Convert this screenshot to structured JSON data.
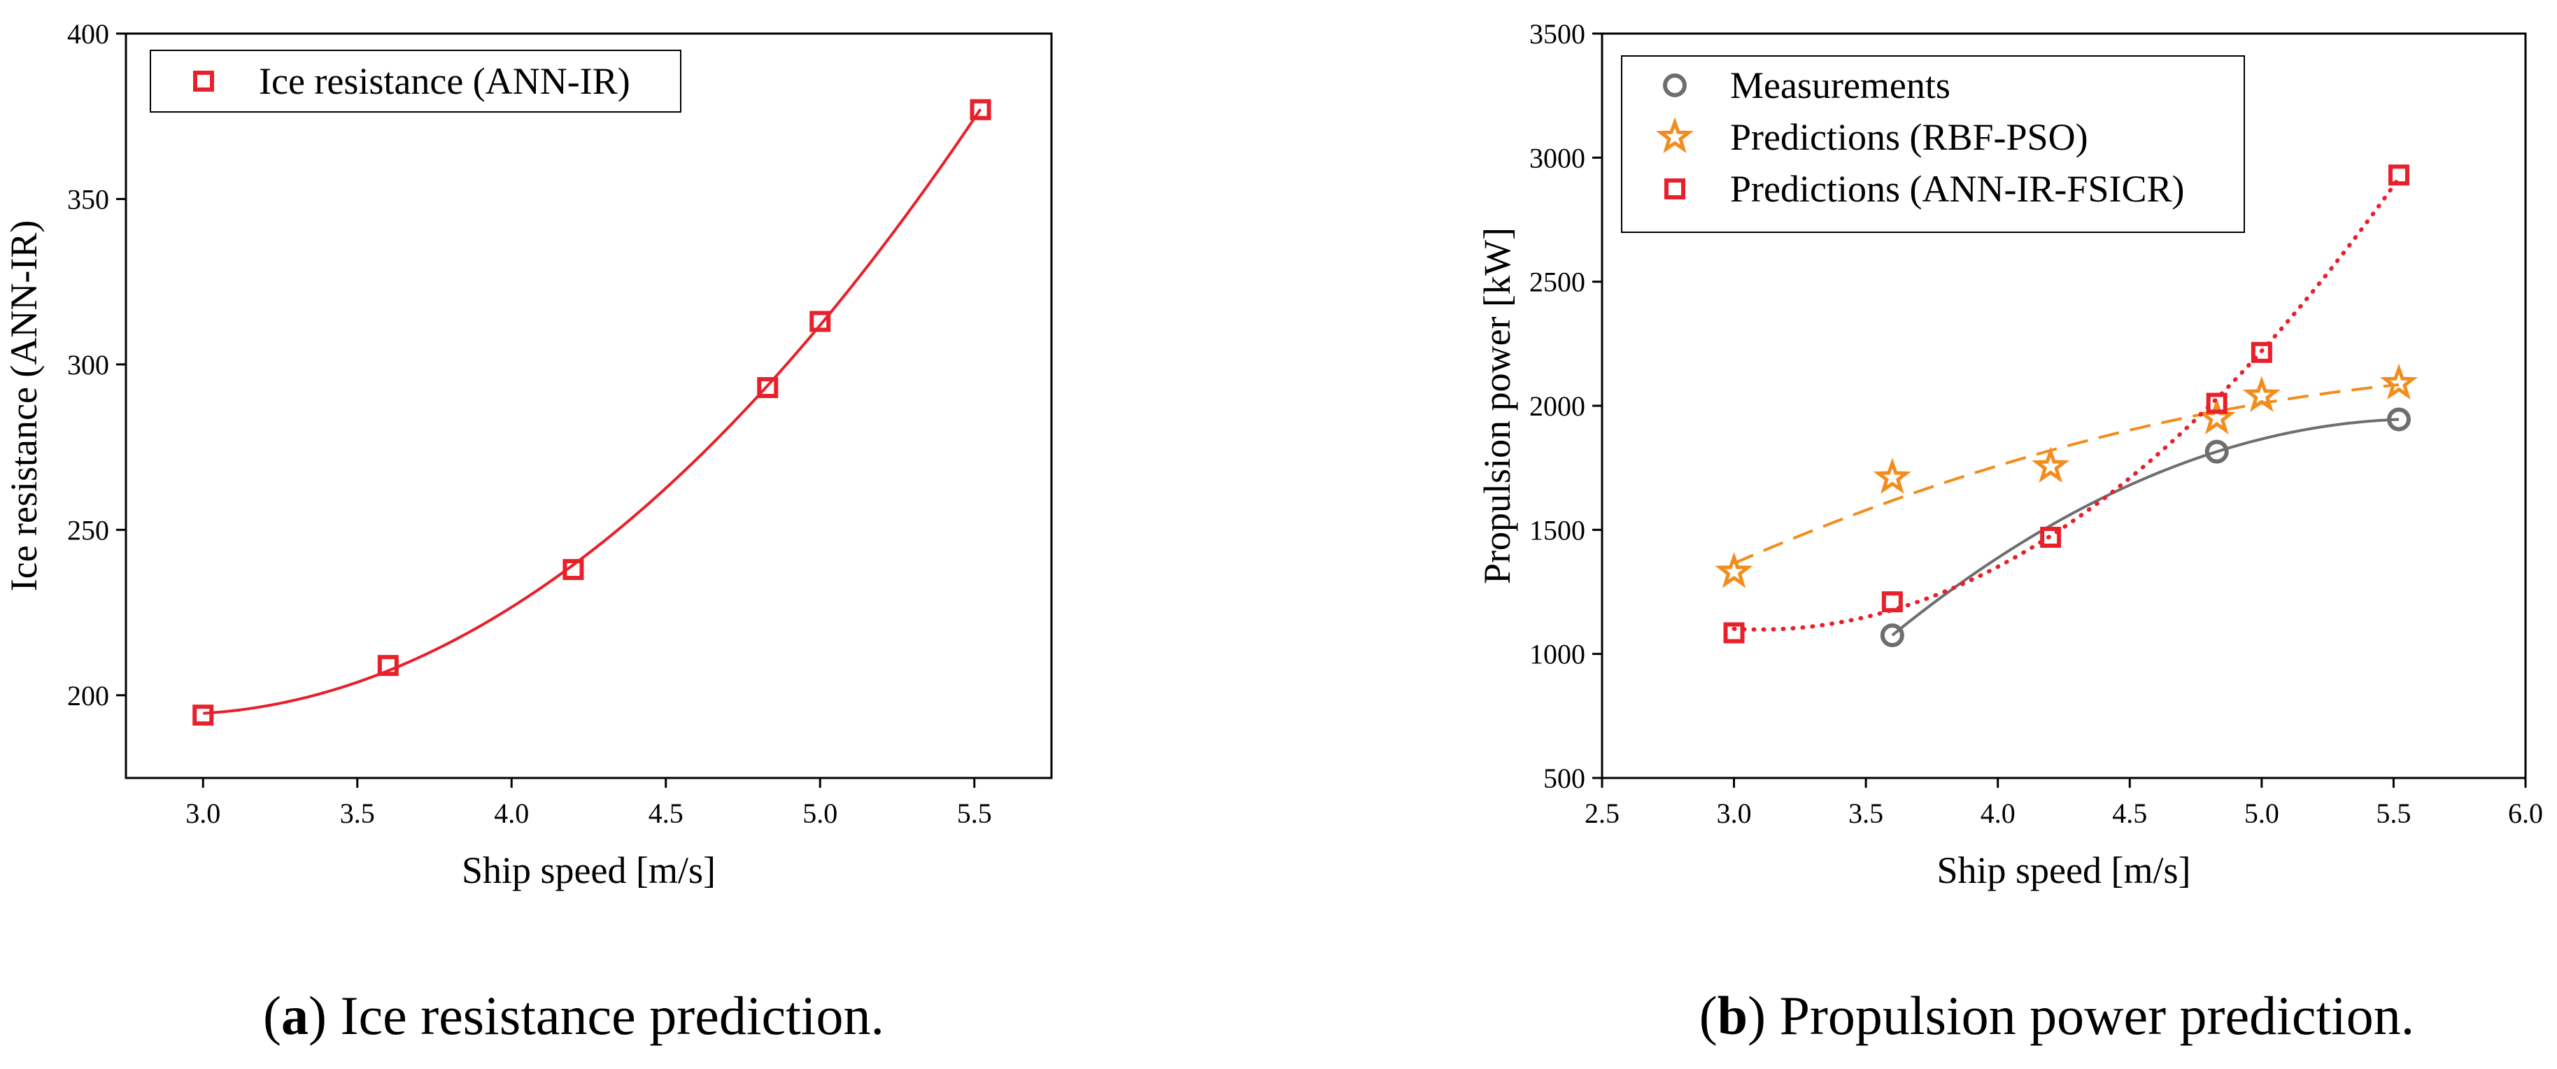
{
  "chart_data": [
    {
      "id": "a",
      "type": "scatter",
      "caption": {
        "letter": "a",
        "text": "Ice resistance prediction."
      },
      "xlabel": "Ship speed [m/s]",
      "ylabel": "Ice resistance (ANN-IR)",
      "xlim": [
        2.75,
        5.75
      ],
      "ylim": [
        175,
        400
      ],
      "xticks": [
        3.0,
        3.5,
        4.0,
        4.5,
        5.0,
        5.5
      ],
      "xtick_labels": [
        "3.0",
        "3.5",
        "4.0",
        "4.5",
        "5.0",
        "5.5"
      ],
      "yticks": [
        200,
        250,
        300,
        350,
        400
      ],
      "ytick_labels": [
        "200",
        "250",
        "300",
        "350",
        "400"
      ],
      "grid": false,
      "legend_position": "top-left",
      "series": [
        {
          "name": "Ice resistance (ANN-IR)",
          "marker": "square",
          "color": "#e8202a",
          "fit": "quadratic",
          "line_style": "solid",
          "x": [
            3.0,
            3.6,
            4.2,
            4.83,
            5.0,
            5.52
          ],
          "y": [
            194,
            209,
            238,
            293,
            313,
            377
          ]
        }
      ]
    },
    {
      "id": "b",
      "type": "scatter",
      "caption": {
        "letter": "b",
        "text": "Propulsion power prediction."
      },
      "xlabel": "Ship speed [m/s]",
      "ylabel": "Propulsion power [kW]",
      "xlim": [
        2.5,
        6.0
      ],
      "ylim": [
        500,
        3500
      ],
      "xticks": [
        2.5,
        3.0,
        3.5,
        4.0,
        4.5,
        5.0,
        5.5,
        6.0
      ],
      "xtick_labels": [
        "2.5",
        "3.0",
        "3.5",
        "4.0",
        "4.5",
        "5.0",
        "5.5",
        "6.0"
      ],
      "yticks": [
        500,
        1000,
        1500,
        2000,
        2500,
        3000,
        3500
      ],
      "ytick_labels": [
        "500",
        "1000",
        "1500",
        "2000",
        "2500",
        "3000",
        "3500"
      ],
      "grid": false,
      "legend_position": "top-left",
      "series": [
        {
          "name": "Measurements",
          "marker": "circle",
          "color": "#6e6e6e",
          "fit": "quadratic",
          "line_style": "solid",
          "x": [
            3.6,
            4.83,
            5.52
          ],
          "y": [
            1075,
            1815,
            1945
          ]
        },
        {
          "name": "Predictions (RBF-PSO)",
          "marker": "star",
          "color": "#f28c1c",
          "fit": "quadratic",
          "line_style": "dashed",
          "x": [
            3.0,
            3.6,
            4.2,
            4.83,
            5.0,
            5.52
          ],
          "y": [
            1330,
            1710,
            1755,
            1950,
            2040,
            2090
          ]
        },
        {
          "name": "Predictions (ANN-IR-FSICR)",
          "marker": "square",
          "color": "#e8202a",
          "fit": "quadratic",
          "line_style": "dotted",
          "x": [
            3.0,
            3.6,
            4.2,
            4.83,
            5.0,
            5.52
          ],
          "y": [
            1085,
            1210,
            1470,
            2010,
            2215,
            2930
          ]
        }
      ]
    }
  ]
}
